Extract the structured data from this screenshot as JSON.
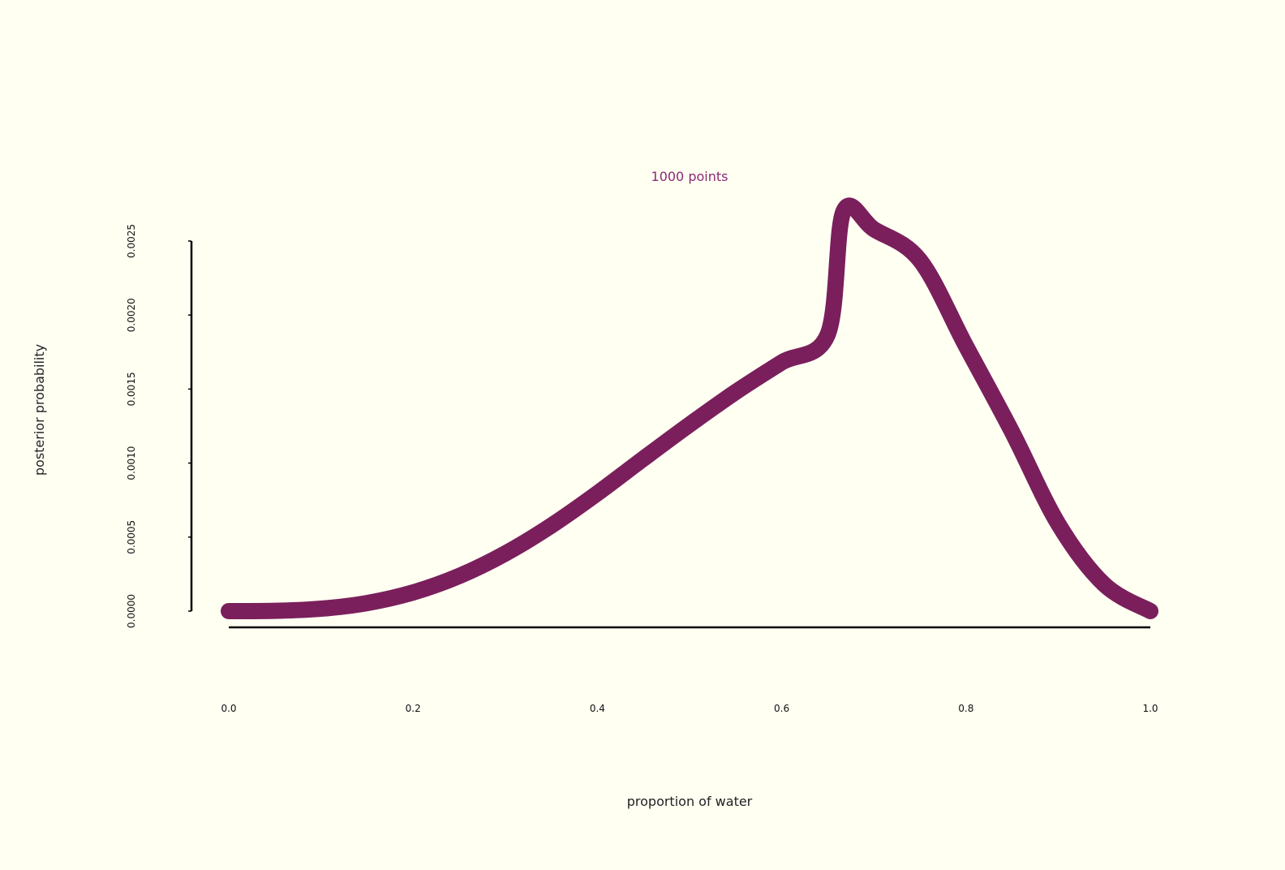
{
  "chart_data": {
    "type": "line",
    "title": "1000 points",
    "xlabel": "proportion of water",
    "ylabel": "posterior probability",
    "xlim": [
      0,
      1
    ],
    "ylim": [
      0,
      0.0025
    ],
    "x_ticks": [
      "0.0",
      "0.2",
      "0.4",
      "0.6",
      "0.8",
      "1.0"
    ],
    "y_ticks": [
      "0.0000",
      "0.0005",
      "0.0010",
      "0.0015",
      "0.0020",
      "0.0025"
    ],
    "grid": false,
    "colors": {
      "background": "#fffff2",
      "line": "#7a1f5c",
      "title": "#8b2a75",
      "axis": "#000000"
    },
    "series": [
      {
        "x": [
          0.0,
          0.05,
          0.1,
          0.15,
          0.2,
          0.25,
          0.3,
          0.35,
          0.4,
          0.45,
          0.5,
          0.55,
          0.6,
          0.65,
          0.667,
          0.7,
          0.75,
          0.8,
          0.85,
          0.9,
          0.95,
          1.0
        ],
        "y": [
          0.0,
          2.1e-06,
          1.63e-05,
          5.43e-05,
          0.000126,
          0.000237,
          0.000389,
          0.000578,
          0.000796,
          0.00103,
          0.00126,
          0.00148,
          0.00168,
          0.00187,
          0.0027,
          0.00258,
          0.00237,
          0.00179,
          0.00121,
          0.00059,
          0.00018,
          0.0
        ]
      }
    ]
  }
}
